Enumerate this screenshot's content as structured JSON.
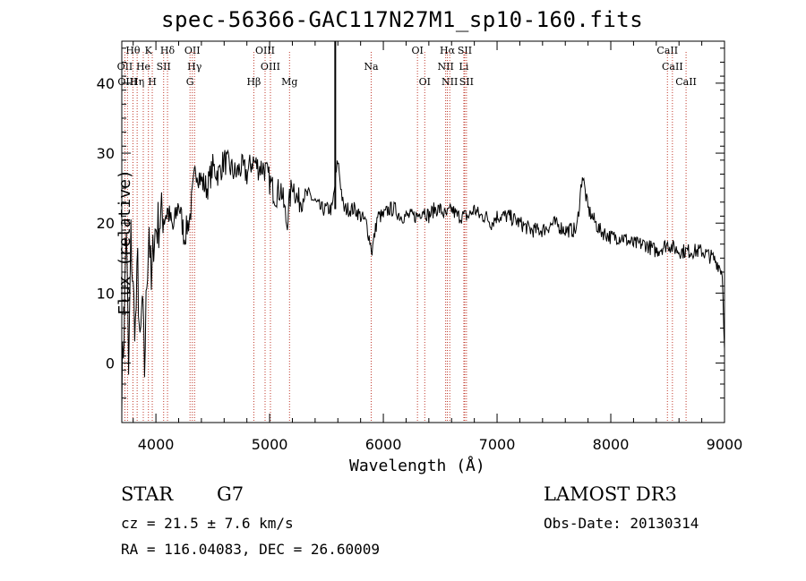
{
  "chart_data": {
    "type": "line",
    "title": "spec-56366-GAC117N27M1_sp10-160.fits",
    "xlabel": "Wavelength (Å)",
    "ylabel": "Flux (relative)",
    "xlim": [
      3700,
      9000
    ],
    "ylim": [
      -8.5,
      46
    ],
    "xticks": [
      4000,
      5000,
      6000,
      7000,
      8000,
      9000
    ],
    "yticks": [
      0,
      10,
      20,
      30,
      40
    ],
    "series": [
      {
        "name": "spectrum",
        "x": [
          3700,
          3720,
          3740,
          3760,
          3780,
          3800,
          3820,
          3840,
          3860,
          3880,
          3900,
          3920,
          3940,
          3960,
          3980,
          4000,
          4050,
          4100,
          4150,
          4200,
          4250,
          4300,
          4350,
          4400,
          4450,
          4500,
          4550,
          4600,
          4650,
          4700,
          4750,
          4800,
          4850,
          4900,
          4950,
          5000,
          5050,
          5100,
          5150,
          5200,
          5250,
          5300,
          5350,
          5400,
          5450,
          5500,
          5550,
          5600,
          5650,
          5700,
          5750,
          5800,
          5850,
          5900,
          5950,
          6000,
          6050,
          6100,
          6150,
          6200,
          6250,
          6300,
          6350,
          6400,
          6450,
          6500,
          6550,
          6600,
          6650,
          6700,
          6750,
          6800,
          6850,
          6900,
          6950,
          7000,
          7100,
          7200,
          7300,
          7400,
          7500,
          7600,
          7700,
          7750,
          7800,
          7900,
          8000,
          8100,
          8200,
          8300,
          8400,
          8500,
          8600,
          8700,
          8800,
          8900,
          8950,
          8980,
          9000
        ],
        "values": [
          -3,
          5,
          20,
          -2,
          18,
          10,
          5,
          14,
          1,
          9,
          -1,
          12,
          20,
          10,
          18,
          19,
          21,
          22,
          19,
          23,
          18,
          21,
          28,
          26,
          25,
          28,
          27,
          29,
          28,
          27,
          28,
          27,
          29,
          28,
          28,
          26,
          24,
          25,
          20,
          26,
          23,
          24,
          24,
          23,
          22,
          22,
          22,
          29,
          22,
          22,
          22,
          21,
          20,
          16,
          21,
          21,
          22,
          22,
          21,
          21,
          21,
          21,
          22,
          21,
          22,
          22,
          21,
          22,
          21,
          21,
          21,
          22,
          21,
          21,
          20,
          21,
          21,
          20,
          19,
          19,
          20,
          19,
          19,
          27,
          22,
          19,
          18,
          18,
          17,
          17,
          16,
          17,
          16,
          16,
          16,
          15,
          14,
          13,
          2
        ]
      }
    ],
    "line_markers": [
      {
        "label": "Hθ",
        "x": 3798,
        "row": 0
      },
      {
        "label": "K",
        "x": 3934,
        "row": 0
      },
      {
        "label": "Hδ",
        "x": 4102,
        "row": 0
      },
      {
        "label": "OII",
        "x": 4320,
        "row": 0
      },
      {
        "label": "OIII",
        "x": 4960,
        "row": 0
      },
      {
        "label": "OI",
        "x": 6300,
        "row": 0
      },
      {
        "label": "Hα",
        "x": 6563,
        "row": 0
      },
      {
        "label": "SII",
        "x": 6716,
        "row": 0
      },
      {
        "label": "CaII",
        "x": 8498,
        "row": 0
      },
      {
        "label": "OII",
        "x": 3727,
        "row": 1
      },
      {
        "label": "He",
        "x": 3889,
        "row": 1
      },
      {
        "label": "SII",
        "x": 4068,
        "row": 1
      },
      {
        "label": "Hγ",
        "x": 4340,
        "row": 1
      },
      {
        "label": "OIII",
        "x": 5007,
        "row": 1
      },
      {
        "label": "Na",
        "x": 5893,
        "row": 1
      },
      {
        "label": "NII",
        "x": 6548,
        "row": 1
      },
      {
        "label": "Li",
        "x": 6708,
        "row": 1
      },
      {
        "label": "CaII",
        "x": 8542,
        "row": 1
      },
      {
        "label": "OIII",
        "x": 3750,
        "row": 2
      },
      {
        "label": "Hη",
        "x": 3835,
        "row": 2
      },
      {
        "label": "H",
        "x": 3968,
        "row": 2
      },
      {
        "label": "G",
        "x": 4300,
        "row": 2
      },
      {
        "label": "Hβ",
        "x": 4861,
        "row": 2
      },
      {
        "label": "Mg",
        "x": 5175,
        "row": 2
      },
      {
        "label": "OI",
        "x": 6364,
        "row": 2
      },
      {
        "label": "NII",
        "x": 6584,
        "row": 2
      },
      {
        "label": "SII",
        "x": 6731,
        "row": 2
      },
      {
        "label": "CaII",
        "x": 8662,
        "row": 2
      }
    ],
    "marker_color": "#c0392b",
    "spike_x": 5577
  },
  "footer": {
    "type_label": "STAR",
    "subclass": "G7",
    "survey": "LAMOST DR3",
    "cz": "cz = 21.5 ± 7.6 km/s",
    "obs_date": "Obs-Date: 20130314",
    "coords": "RA = 116.04083, DEC =  26.60009"
  }
}
